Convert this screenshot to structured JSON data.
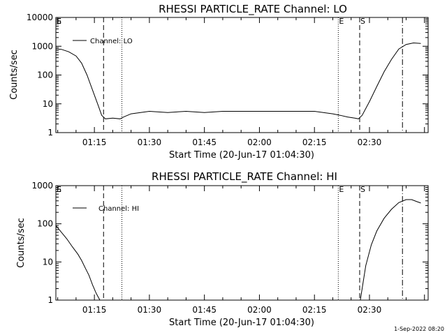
{
  "chart_data": [
    {
      "type": "line",
      "title": "RHESSI PARTICLE_RATE Channel: LO",
      "xlabel": "Start Time (20-Jun-17 01:04:30)",
      "ylabel": "Counts/sec",
      "yscale": "log",
      "ylim": [
        1,
        10000
      ],
      "xlim": [
        "01:04:30",
        "02:46:00"
      ],
      "x_ticks": [
        "01:15",
        "01:30",
        "01:45",
        "02:00",
        "02:15",
        "02:30"
      ],
      "y_ticks": [
        "1",
        "10",
        "100",
        "1000",
        "10000"
      ],
      "legend": {
        "position": "top-left",
        "entries": [
          "Channel: LO"
        ]
      },
      "series": [
        {
          "name": "Channel: LO",
          "x": [
            "01:04:30",
            "01:06:00",
            "01:08:00",
            "01:10:00",
            "01:11:30",
            "01:13:00",
            "01:14:30",
            "01:16:00",
            "01:17:00",
            "01:18:00",
            "01:20:00",
            "01:22:00",
            "01:23:00",
            "01:25:00",
            "01:30:00",
            "01:35:00",
            "01:40:00",
            "01:45:00",
            "01:50:00",
            "01:55:00",
            "02:00:00",
            "02:05:00",
            "02:10:00",
            "02:15:00",
            "02:20:00",
            "02:22:00",
            "02:24:00",
            "02:26:00",
            "02:27:00",
            "02:28:00",
            "02:30:00",
            "02:32:00",
            "02:34:00",
            "02:36:00",
            "02:38:00",
            "02:40:00",
            "02:42:00",
            "02:44:00"
          ],
          "values": [
            800,
            780,
            640,
            460,
            260,
            100,
            30,
            9,
            4,
            3,
            3.2,
            3,
            3.5,
            4.5,
            5.5,
            5,
            5.5,
            5,
            5.5,
            5.5,
            5.5,
            5.5,
            5.5,
            5.5,
            4.5,
            4,
            3.5,
            3.2,
            3,
            4,
            12,
            40,
            130,
            350,
            800,
            1150,
            1300,
            1250
          ]
        }
      ],
      "markers": [
        {
          "label": "E",
          "time": "01:04:30",
          "style": "dotted"
        },
        {
          "label": "S",
          "time": "01:04:30",
          "style": "dashed"
        },
        {
          "label": "",
          "time": "01:17:30",
          "style": "dashed"
        },
        {
          "label": "",
          "time": "01:22:30",
          "style": "dotted"
        },
        {
          "label": "E",
          "time": "02:21:30",
          "style": "dotted"
        },
        {
          "label": "S",
          "time": "02:27:20",
          "style": "dashed"
        },
        {
          "label": "",
          "time": "02:39:00",
          "style": "dash-dot"
        }
      ],
      "grid": false
    },
    {
      "type": "line",
      "title": "RHESSI PARTICLE_RATE Channel: HI",
      "xlabel": "Start Time (20-Jun-17 01:04:30)",
      "ylabel": "Counts/sec",
      "yscale": "log",
      "ylim": [
        1,
        1000
      ],
      "xlim": [
        "01:04:30",
        "02:46:00"
      ],
      "x_ticks": [
        "01:15",
        "01:30",
        "01:45",
        "02:00",
        "02:15",
        "02:30"
      ],
      "y_ticks": [
        "1",
        "10",
        "100",
        "1000"
      ],
      "legend": {
        "position": "top-left",
        "entries": [
          "Channel: HI"
        ]
      },
      "series": [
        {
          "name": "Channel: HI",
          "x": [
            "01:04:30",
            "01:06:00",
            "01:07:30",
            "01:09:00",
            "01:10:30",
            "01:11:30",
            "01:12:30",
            "01:13:30",
            "01:14:30",
            "01:15:30",
            "01:16:30",
            "02:27:30",
            "02:28:00",
            "02:29:00",
            "02:30:30",
            "02:32:00",
            "02:34:00",
            "02:36:00",
            "02:38:00",
            "02:40:00",
            "02:41:30",
            "02:43:00",
            "02:44:00"
          ],
          "values": [
            90,
            60,
            40,
            25,
            16,
            11,
            7,
            4.5,
            2.5,
            1.5,
            1,
            1,
            2,
            8,
            28,
            65,
            140,
            240,
            360,
            430,
            430,
            380,
            350
          ]
        }
      ],
      "markers": [
        {
          "label": "E",
          "time": "01:04:30",
          "style": "dotted"
        },
        {
          "label": "S",
          "time": "01:04:30",
          "style": "dashed"
        },
        {
          "label": "",
          "time": "01:17:30",
          "style": "dashed"
        },
        {
          "label": "",
          "time": "01:22:30",
          "style": "dotted"
        },
        {
          "label": "E",
          "time": "02:21:30",
          "style": "dotted"
        },
        {
          "label": "S",
          "time": "02:27:20",
          "style": "dashed"
        },
        {
          "label": "",
          "time": "02:39:00",
          "style": "dash-dot"
        }
      ],
      "grid": false
    }
  ],
  "footer_stamp": "1-Sep-2022 08:20"
}
